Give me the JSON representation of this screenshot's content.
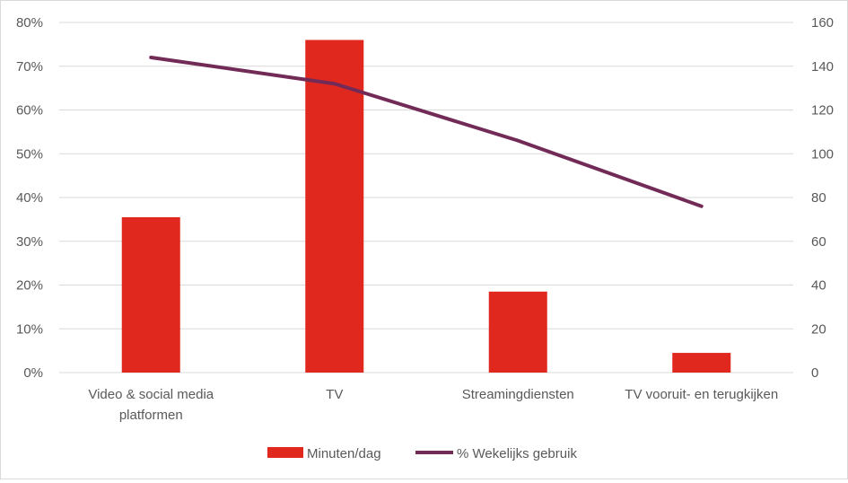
{
  "chart_data": {
    "type": "bar",
    "categories": [
      [
        "Video & social media",
        "platformen"
      ],
      [
        "TV"
      ],
      [
        "Streamingdiensten"
      ],
      [
        "TV vooruit- en terugkijken"
      ]
    ],
    "series": [
      {
        "name": "Minuten/dag",
        "type": "bar",
        "axis": "right",
        "values": [
          71,
          152,
          37,
          9
        ],
        "color": "#e0281e"
      },
      {
        "name": "% Wekelijks gebruik",
        "type": "line",
        "axis": "left",
        "values": [
          0.72,
          0.66,
          0.53,
          0.38
        ],
        "color": "#722b57"
      }
    ],
    "y_left": {
      "ylim": [
        0,
        0.8
      ],
      "ticks": [
        "0%",
        "10%",
        "20%",
        "30%",
        "40%",
        "50%",
        "60%",
        "70%",
        "80%"
      ]
    },
    "y_right": {
      "ylim": [
        0,
        160
      ],
      "ticks": [
        "0",
        "20",
        "40",
        "60",
        "80",
        "100",
        "120",
        "140",
        "160"
      ]
    },
    "grid": true,
    "legend_position": "bottom-center",
    "gridline_color": "#d9d9d9"
  }
}
